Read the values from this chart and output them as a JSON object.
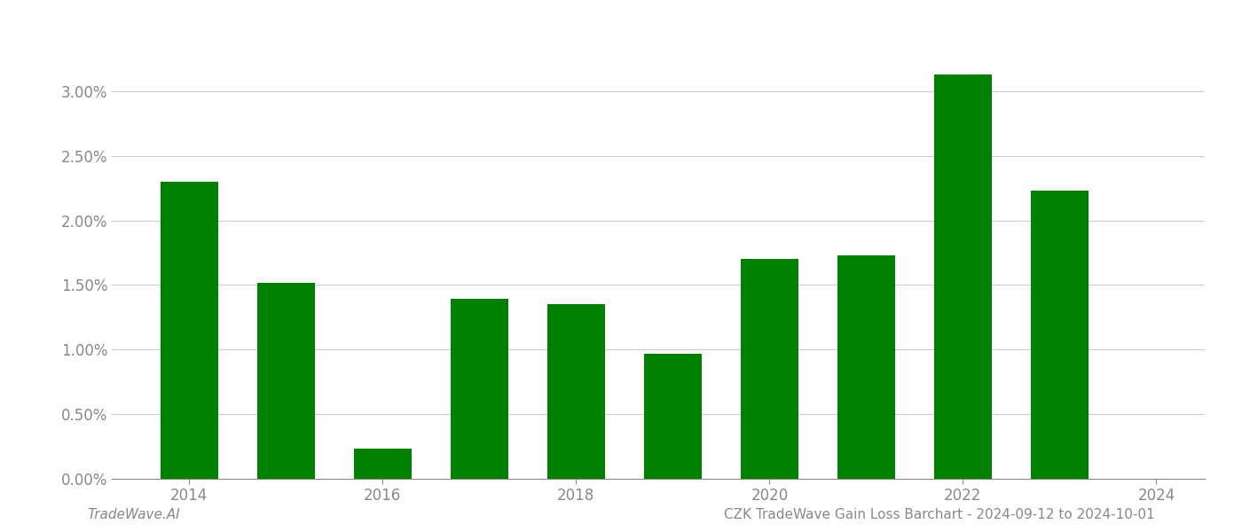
{
  "years": [
    2014,
    2015,
    2016,
    2017,
    2018,
    2019,
    2020,
    2021,
    2022,
    2023
  ],
  "values": [
    0.023,
    0.0152,
    0.0023,
    0.0139,
    0.0135,
    0.0097,
    0.017,
    0.0173,
    0.0313,
    0.0223
  ],
  "bar_color": "#008000",
  "bar_width": 0.6,
  "xlim": [
    2013.2,
    2024.5
  ],
  "ylim": [
    0,
    0.035
  ],
  "yticks": [
    0.0,
    0.005,
    0.01,
    0.015,
    0.02,
    0.025,
    0.03
  ],
  "xticks": [
    2014,
    2016,
    2018,
    2020,
    2022,
    2024
  ],
  "footer_left": "TradeWave.AI",
  "footer_right": "CZK TradeWave Gain Loss Barchart - 2024-09-12 to 2024-10-01",
  "footer_fontsize": 11,
  "grid_color": "#cccccc",
  "background_color": "#ffffff",
  "tick_label_color": "#888888",
  "axis_color": "#888888"
}
